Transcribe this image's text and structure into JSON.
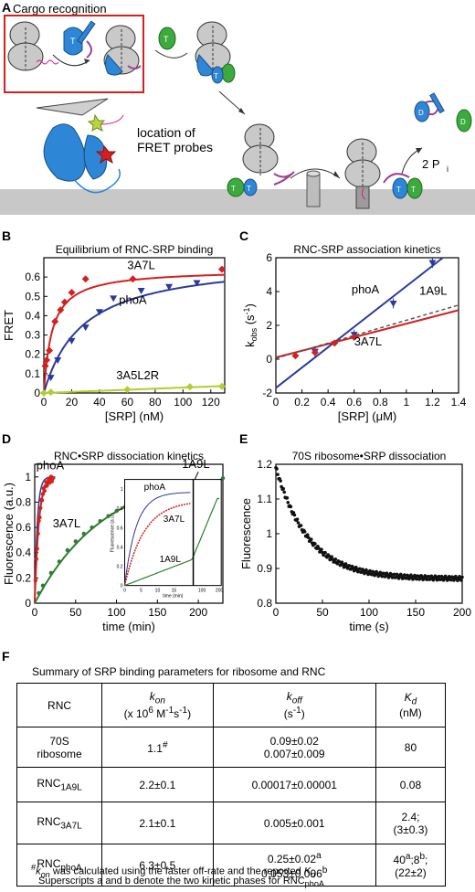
{
  "panelA": {
    "label": "A",
    "title": "Cargo recognition",
    "probe_text": [
      "location of",
      "FRET probes"
    ],
    "t_letter": "T",
    "d_letter": "D",
    "pi_text": "2 P",
    "pi_sub": "i"
  },
  "panelB": {
    "label": "B",
    "chart_data": {
      "type": "scatter",
      "title": "Equilibrium of RNC-SRP binding",
      "xlabel": "[SRP] (nM)",
      "ylabel": "FRET",
      "xlim": [
        0,
        130
      ],
      "ylim": [
        0,
        0.7
      ],
      "xticks": [
        0,
        20,
        40,
        60,
        80,
        100,
        120
      ],
      "yticks": [
        0,
        0.1,
        0.2,
        0.3,
        0.4,
        0.5,
        0.6
      ],
      "series": [
        {
          "name": "3A7L",
          "color": "#d42020",
          "marker": "diamond",
          "x": [
            1,
            2,
            4,
            8,
            12,
            15,
            20,
            30,
            64,
            128
          ],
          "y": [
            0.14,
            0.17,
            0.22,
            0.37,
            0.43,
            0.47,
            0.52,
            0.59,
            0.59,
            0.64
          ]
        },
        {
          "name": "phoA",
          "color": "#2a3a9a",
          "marker": "triangle-down",
          "x": [
            5,
            10,
            20,
            30,
            40,
            50,
            70,
            90,
            110
          ],
          "y": [
            0.08,
            0.17,
            0.27,
            0.34,
            0.42,
            0.49,
            0.53,
            0.55,
            0.57
          ]
        },
        {
          "name": "3A5L2R",
          "color": "#b6cc2e",
          "marker": "diamond",
          "x": [
            0,
            5,
            60,
            105,
            128
          ],
          "y": [
            0,
            0.004,
            0.018,
            0.032,
            0.034
          ]
        }
      ]
    }
  },
  "panelC": {
    "label": "C",
    "chart_data": {
      "type": "scatter",
      "title": "RNC-SRP association kinetics",
      "xlabel": "[SRP] (μM)",
      "ylabel": "k",
      "ylabel_sub": "obs",
      "ylabel_unit": "(s",
      "ylabel_sup": "-1",
      "xlim": [
        0,
        1.4
      ],
      "ylim": [
        -2,
        6
      ],
      "xticks": [
        0,
        0.2,
        0.4,
        0.6,
        0.8,
        1,
        1.2,
        1.4
      ],
      "yticks": [
        -2,
        0,
        2,
        4,
        6
      ],
      "series": [
        {
          "name": "phoA",
          "color": "#2a3a9a",
          "marker": "triangle-down",
          "x": [
            0.3,
            0.6,
            0.9,
            1.2
          ],
          "y": [
            0.45,
            1.45,
            3.3,
            5.7
          ]
        },
        {
          "name": "3A7L",
          "color": "#d42020",
          "marker": "diamond",
          "x": [
            0.15,
            0.3,
            0.45,
            0.6
          ],
          "y": [
            0.2,
            0.4,
            0.95,
            1.3
          ]
        },
        {
          "name": "1A9L",
          "color": "#555555",
          "marker": "none",
          "x": [],
          "y": []
        }
      ]
    }
  },
  "panelD": {
    "label": "D",
    "chart_data": {
      "type": "scatter",
      "title": "RNC•SRP dissociation kinetics",
      "xlabel": "time (min)",
      "ylabel": "Fluorescence (a.u.)",
      "xlim": [
        0,
        230
      ],
      "ylim": [
        0,
        1.1
      ],
      "xticks": [
        0,
        50,
        100,
        150,
        200
      ],
      "yticks": [
        0,
        0.2,
        0.4,
        0.6,
        0.8,
        1
      ],
      "series": [
        {
          "name": "phoA",
          "color": "#2a3a9a"
        },
        {
          "name": "3A7L",
          "color": "#d42020"
        },
        {
          "name": "1A9L",
          "color": "#2e7d32",
          "x": [
            5,
            10,
            20,
            30,
            40,
            50,
            60,
            70,
            80,
            90,
            100,
            110,
            120,
            130,
            140,
            150,
            160,
            170,
            180,
            190,
            200,
            210,
            220,
            230
          ],
          "y": [
            0.08,
            0.14,
            0.24,
            0.33,
            0.42,
            0.49,
            0.55,
            0.6,
            0.65,
            0.69,
            0.73,
            0.76,
            0.79,
            0.82,
            0.84,
            0.86,
            0.88,
            0.9,
            0.91,
            0.93,
            0.94,
            0.95,
            0.96,
            0.99
          ]
        }
      ],
      "inset": {
        "xlabel": "time (min)",
        "ylabel": "Fluorescence (a.u.)",
        "xticks": [
          "0",
          "5",
          "10",
          "15",
          "100",
          "200"
        ],
        "yticks": [
          "0",
          "0.2",
          "0.4",
          "0.6",
          "0.8",
          "1"
        ],
        "labels": [
          "phoA",
          "3A7L",
          "1A9L"
        ]
      }
    }
  },
  "panelE": {
    "label": "E",
    "chart_data": {
      "type": "scatter",
      "title": "70S ribosome•SRP dissociation",
      "xlabel": "time (s)",
      "ylabel": "Fluorescence",
      "xlim": [
        0,
        200
      ],
      "ylim": [
        0.8,
        1.2
      ],
      "xticks": [
        0,
        50,
        100,
        150,
        200
      ],
      "yticks": [
        0.8,
        0.9,
        1.0,
        1.1,
        1.2
      ],
      "ytick_labels": [
        "0.8",
        "0.9",
        "1",
        "1.1",
        "1.2"
      ],
      "series": [
        {
          "name": "70S",
          "color": "#111111",
          "x": [
            0,
            5,
            10,
            15,
            20,
            30,
            40,
            50,
            75,
            100,
            125,
            150,
            175,
            200
          ],
          "y": [
            1.19,
            1.12,
            1.07,
            1.04,
            1.01,
            0.98,
            0.96,
            0.94,
            0.92,
            0.9,
            0.89,
            0.88,
            0.875,
            0.87
          ]
        }
      ]
    }
  },
  "panelF": {
    "label": "F",
    "title": "Summary of SRP binding parameters for ribosome and RNC",
    "headers": {
      "rnc": "RNC",
      "kon": "k",
      "kon_sub": "on",
      "kon_unit1": "(x 10",
      "kon_sup1": "6",
      "kon_unit2": " M",
      "kon_sup2": "-1",
      "kon_unit3": "s",
      "kon_sup3": "-1",
      "kon_unit4": ")",
      "koff": "k",
      "koff_sub": "off",
      "koff_unit": "(s",
      "koff_sup": "-1",
      "koff_unit_end": ")",
      "kd": "K",
      "kd_sub": "d",
      "kd_unit": "(nM)"
    },
    "rows": [
      {
        "rnc": "70S",
        "rnc2": "ribosome",
        "rnc_sub": "",
        "kon": "1.1",
        "kon_sup": "#",
        "koff1": "0.09±0.02",
        "koff2": "0.007±0.009",
        "kd": "80",
        "kd2": ""
      },
      {
        "rnc": "RNC",
        "rnc2": "",
        "rnc_sub": "1A9L",
        "kon": "2.2±0.1",
        "kon_sup": "",
        "koff1": "0.00017±0.00001",
        "koff2": "",
        "kd": "0.08",
        "kd2": ""
      },
      {
        "rnc": "RNC",
        "rnc2": "",
        "rnc_sub": "3A7L",
        "kon": "2.1±0.1",
        "kon_sup": "",
        "koff1": "0.005±0.001",
        "koff2": "",
        "kd": "2.4;",
        "kd2": "(3±0.3)"
      },
      {
        "rnc": "RNC",
        "rnc2": "",
        "rnc_sub": "phoA",
        "kon": "6.3±0.5",
        "kon_sup": "",
        "koff1": "0.25±0.02",
        "koff1_sup": "a",
        "koff2": "0.053±0.006",
        "koff2_sup": "b",
        "kd": "40",
        "kd_sup_a": "a",
        "kd_mid": ";8",
        "kd_sup_b": "b",
        "kd_end": ";",
        "kd2": "(22±2)"
      }
    ],
    "footnote1_pre": "#",
    "footnote1_k": "k",
    "footnote1_ksub": "on",
    "footnote1_text": " was calculated using the faster off-rate and the reported ",
    "footnote1_kd": "K",
    "footnote1_kdsub": "d",
    "footnote2_text": "Superscripts a and b denote the two kinetic phases for RNC",
    "footnote2_sub": "phoA"
  }
}
